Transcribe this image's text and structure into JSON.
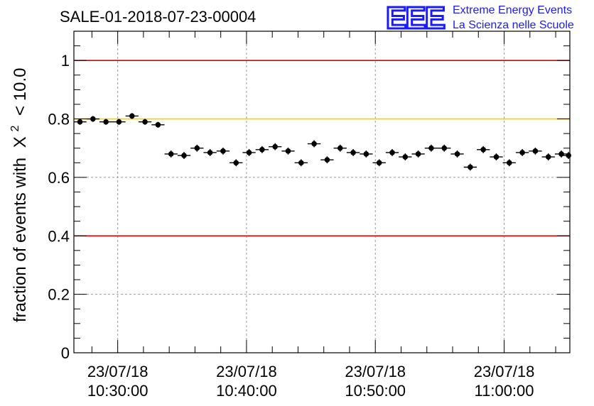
{
  "chart_data": {
    "type": "scatter",
    "title": "SALE-01-2018-07-23-00004",
    "xlabel": "",
    "ylabel": "fraction of events with",
    "ylabel_symbol": "X",
    "ylabel_exponent": "2",
    "ylabel_suffix": "< 10.0",
    "ylim": [
      0,
      1.1
    ],
    "yticks": [
      "0",
      "0.2",
      "0.4",
      "0.6",
      "0.8",
      "1"
    ],
    "ytick_values": [
      0,
      0.2,
      0.4,
      0.6,
      0.8,
      1.0
    ],
    "xlim_minutes": [
      26.6,
      65.1
    ],
    "xticks": [
      {
        "minute": 30,
        "date": "23/07/18",
        "time": "10:30:00"
      },
      {
        "minute": 40,
        "date": "23/07/18",
        "time": "10:40:00"
      },
      {
        "minute": 50,
        "date": "23/07/18",
        "time": "10:50:00"
      },
      {
        "minute": 60,
        "date": "23/07/18",
        "time": "11:00:00"
      }
    ],
    "reference_lines": [
      {
        "y": 1.0,
        "color": "#e00000"
      },
      {
        "y": 0.8,
        "color": "#ffcc00"
      },
      {
        "y": 0.4,
        "color": "#e00000"
      }
    ],
    "x_minutes": [
      27.07,
      28.08,
      29.09,
      30.1,
      31.11,
      32.12,
      33.13,
      34.14,
      35.15,
      36.16,
      37.17,
      38.18,
      39.19,
      40.2,
      41.21,
      42.22,
      43.23,
      44.24,
      45.25,
      46.26,
      47.27,
      48.28,
      49.29,
      50.3,
      51.31,
      52.32,
      53.33,
      54.34,
      55.35,
      56.36,
      57.37,
      58.38,
      59.39,
      60.4,
      61.41,
      62.42,
      63.43,
      64.44,
      65.0
    ],
    "values": [
      0.79,
      0.8,
      0.79,
      0.79,
      0.81,
      0.79,
      0.78,
      0.68,
      0.675,
      0.7,
      0.685,
      0.69,
      0.65,
      0.685,
      0.695,
      0.705,
      0.69,
      0.65,
      0.715,
      0.66,
      0.7,
      0.685,
      0.68,
      0.65,
      0.685,
      0.67,
      0.68,
      0.7,
      0.7,
      0.68,
      0.635,
      0.695,
      0.67,
      0.65,
      0.685,
      0.69,
      0.67,
      0.68,
      0.675
    ],
    "errors": [
      0.01,
      0.01,
      0.01,
      0.01,
      0.01,
      0.01,
      0.01,
      0.012,
      0.012,
      0.012,
      0.012,
      0.012,
      0.012,
      0.012,
      0.012,
      0.012,
      0.012,
      0.012,
      0.012,
      0.012,
      0.012,
      0.012,
      0.012,
      0.012,
      0.012,
      0.012,
      0.012,
      0.012,
      0.012,
      0.012,
      0.012,
      0.012,
      0.012,
      0.012,
      0.012,
      0.012,
      0.012,
      0.012,
      0.012
    ],
    "grid": true
  },
  "logo": {
    "mark": "EEE",
    "line1": "Extreme Energy Events",
    "line2": "La Scienza nelle Scuole"
  },
  "colors": {
    "red_line": "#e00000",
    "yellow_line": "#ffcc00",
    "logo_blue": "#1a1aff",
    "marker": "#000000"
  }
}
